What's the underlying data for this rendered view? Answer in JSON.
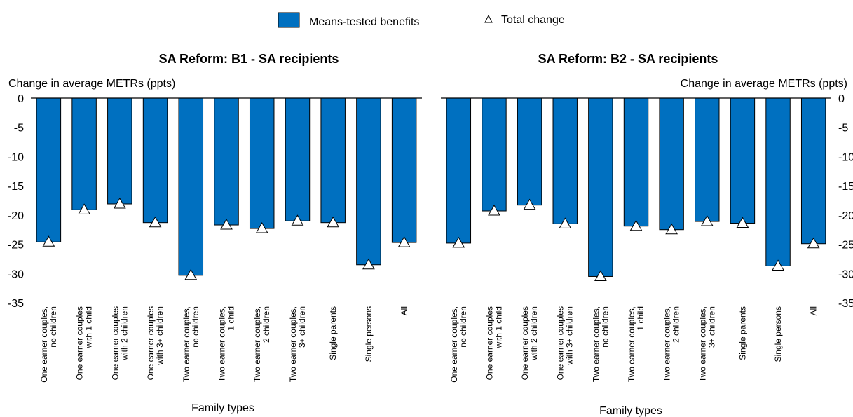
{
  "legend": {
    "bar_label": "Means-tested benefits",
    "marker_label": "Total change"
  },
  "colors": {
    "bar": "#0070c0",
    "bar_stroke": "#000000",
    "marker_fill": "#ffffff",
    "marker_stroke": "#000000"
  },
  "chart_data": [
    {
      "type": "bar",
      "title": "SA Reform: B1 - SA recipients",
      "ylabel": "Change in average METRs (ppts)",
      "xlabel": "Family types",
      "ylim": [
        -35,
        0
      ],
      "yticks": [
        0,
        -5,
        -10,
        -15,
        -20,
        -25,
        -30,
        -35
      ],
      "y_axis_side": "left",
      "categories": [
        [
          "One earner couples,",
          "no children"
        ],
        [
          "One earner couples",
          "with 1 child"
        ],
        [
          "One earner couples",
          "with 2 children"
        ],
        [
          "One earner couples",
          "with 3+ children"
        ],
        [
          "Two earner couples,",
          "no children"
        ],
        [
          "Two earner couples,",
          "1 child"
        ],
        [
          "Two earner couples,",
          "2 children"
        ],
        [
          "Two earner couples,",
          "3+ children"
        ],
        [
          "Single parents"
        ],
        [
          "Single persons"
        ],
        [
          "All"
        ]
      ],
      "series": [
        {
          "name": "Means-tested benefits",
          "kind": "bar",
          "values": [
            -24.6,
            -19.1,
            -18.1,
            -21.3,
            -30.3,
            -21.7,
            -22.3,
            -21.0,
            -21.3,
            -28.5,
            -24.7
          ]
        },
        {
          "name": "Total change",
          "kind": "marker",
          "values": [
            -24.6,
            -19.1,
            -18.1,
            -21.3,
            -30.3,
            -21.7,
            -22.3,
            -21.0,
            -21.3,
            -28.5,
            -24.7
          ]
        }
      ]
    },
    {
      "type": "bar",
      "title": "SA Reform: B2 - SA recipients",
      "ylabel": "Change in average METRs (ppts)",
      "xlabel": "Family types",
      "ylim": [
        -35,
        0
      ],
      "yticks": [
        0,
        -5,
        -10,
        -15,
        -20,
        -25,
        -30,
        -35
      ],
      "y_axis_side": "right",
      "categories": [
        [
          "One earner couples,",
          "no children"
        ],
        [
          "One earner couples",
          "with 1 child"
        ],
        [
          "One earner couples",
          "with 2 children"
        ],
        [
          "One earner couples",
          "with 3+ children"
        ],
        [
          "Two earner couples,",
          "no children"
        ],
        [
          "Two earner couples,",
          "1 child"
        ],
        [
          "Two earner couples,",
          "2 children"
        ],
        [
          "Two earner couples,",
          "3+ children"
        ],
        [
          "Single parents"
        ],
        [
          "Single persons"
        ],
        [
          "All"
        ]
      ],
      "series": [
        {
          "name": "Means-tested benefits",
          "kind": "bar",
          "values": [
            -24.8,
            -19.3,
            -18.3,
            -21.5,
            -30.5,
            -21.9,
            -22.5,
            -21.1,
            -21.4,
            -28.7,
            -24.9
          ]
        },
        {
          "name": "Total change",
          "kind": "marker",
          "values": [
            -24.8,
            -19.3,
            -18.3,
            -21.5,
            -30.5,
            -21.9,
            -22.5,
            -21.1,
            -21.4,
            -28.7,
            -24.9
          ]
        }
      ]
    }
  ]
}
